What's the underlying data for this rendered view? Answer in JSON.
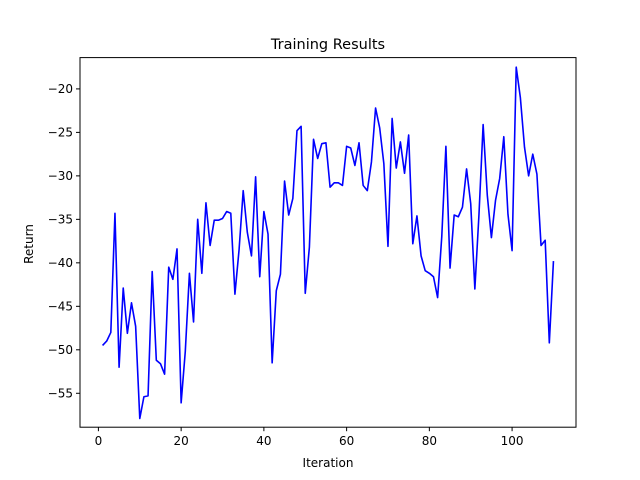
{
  "chart_data": {
    "type": "line",
    "title": "Training Results",
    "xlabel": "Iteration",
    "ylabel": "Return",
    "xlim": [
      -4.45,
      115.45
    ],
    "ylim": [
      -58.9,
      -16.4
    ],
    "xticks": [
      0,
      20,
      40,
      60,
      80,
      100
    ],
    "yticks": [
      -55,
      -50,
      -45,
      -40,
      -35,
      -30,
      -25,
      -20
    ],
    "xtick_labels": [
      "0",
      "20",
      "40",
      "60",
      "80",
      "100"
    ],
    "ytick_labels": [
      "−55",
      "−50",
      "−45",
      "−40",
      "−35",
      "−30",
      "−25",
      "−20"
    ],
    "grid": false,
    "line_color": "#0000ff",
    "series": [
      {
        "x": [
          1,
          2,
          3,
          4,
          5,
          6,
          7,
          8,
          9,
          10,
          11,
          12,
          13,
          14,
          15,
          16,
          17,
          18,
          19,
          20,
          21,
          22,
          23,
          24,
          25,
          26,
          27,
          28,
          29,
          30,
          31,
          32,
          33,
          34,
          35,
          36,
          37,
          38,
          39,
          40,
          41,
          42,
          43,
          44,
          45,
          46,
          47,
          48,
          49,
          50,
          51,
          52,
          53,
          54,
          55,
          56,
          57,
          58,
          59,
          60,
          61,
          62,
          63,
          64,
          65,
          66,
          67,
          68,
          69,
          70,
          71,
          72,
          73,
          74,
          75,
          76,
          77,
          78,
          79,
          80,
          81,
          82,
          83,
          84,
          85,
          86,
          87,
          88,
          89,
          90,
          91,
          92,
          93,
          94,
          95,
          96,
          97,
          98,
          99,
          100,
          101,
          102,
          103,
          104,
          105,
          106,
          107,
          108,
          109,
          110
        ],
        "values": [
          -49.5,
          -49.0,
          -48.0,
          -34.3,
          -52.0,
          -42.9,
          -48.1,
          -44.6,
          -47.3,
          -57.9,
          -55.4,
          -55.3,
          -41.0,
          -51.2,
          -51.6,
          -52.8,
          -40.5,
          -41.9,
          -38.4,
          -56.1,
          -50.2,
          -41.2,
          -46.8,
          -35.0,
          -41.2,
          -33.1,
          -38.0,
          -35.1,
          -35.1,
          -34.9,
          -34.1,
          -34.3,
          -43.6,
          -38.5,
          -31.7,
          -36.5,
          -39.2,
          -30.1,
          -41.6,
          -34.1,
          -36.7,
          -51.5,
          -43.2,
          -41.3,
          -30.6,
          -34.5,
          -32.6,
          -24.8,
          -24.3,
          -43.5,
          -38.2,
          -25.8,
          -28.0,
          -26.3,
          -26.2,
          -31.3,
          -30.8,
          -30.8,
          -31.1,
          -26.6,
          -26.8,
          -28.8,
          -26.2,
          -31.1,
          -31.7,
          -28.4,
          -22.2,
          -24.5,
          -28.6,
          -38.1,
          -23.4,
          -29.1,
          -26.1,
          -29.7,
          -25.3,
          -37.8,
          -34.6,
          -39.2,
          -40.9,
          -41.2,
          -41.6,
          -44.0,
          -37.0,
          -26.6,
          -40.6,
          -34.5,
          -34.7,
          -33.6,
          -29.2,
          -33.2,
          -43.0,
          -34.4,
          -24.1,
          -32.2,
          -37.1,
          -32.8,
          -30.3,
          -25.5,
          -34.4,
          -38.6,
          -17.5,
          -21.0,
          -26.7,
          -30.0,
          -27.5,
          -29.8,
          -38.0,
          -37.4,
          -49.2,
          -39.8
        ]
      }
    ]
  }
}
